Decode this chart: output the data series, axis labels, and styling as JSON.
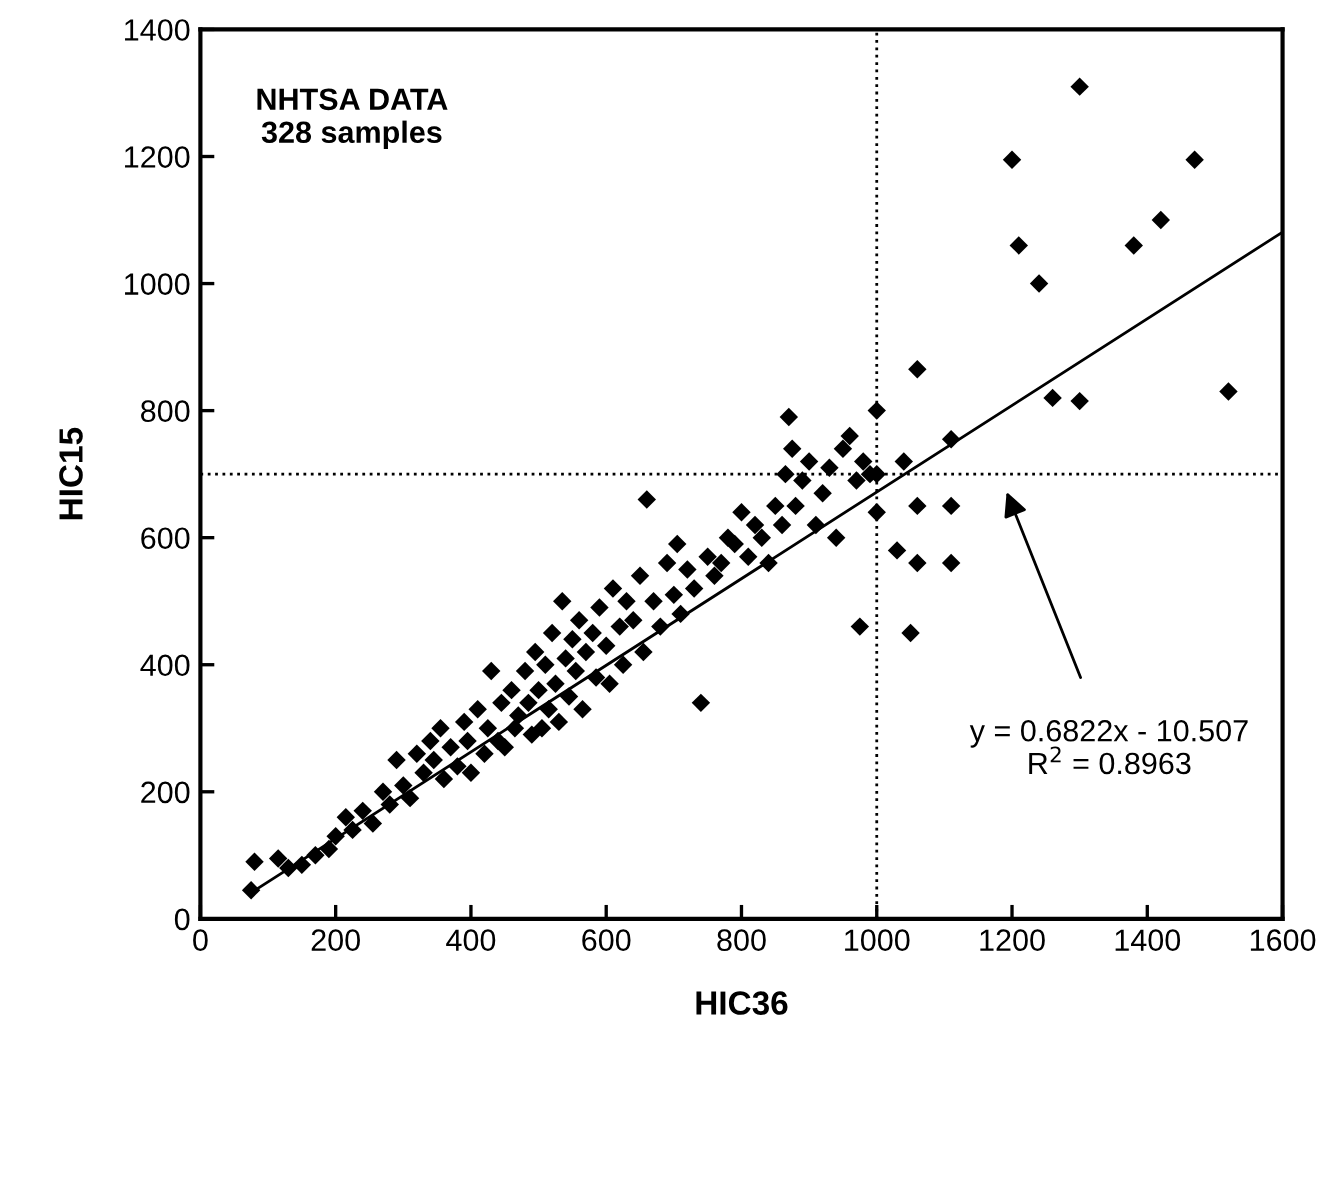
{
  "chart_data": {
    "type": "scatter",
    "xlabel": "HIC36",
    "ylabel": "HIC15",
    "xlim": [
      0,
      1600
    ],
    "ylim": [
      0,
      1400
    ],
    "xticks": [
      0,
      200,
      400,
      600,
      800,
      1000,
      1200,
      1400,
      1600
    ],
    "yticks": [
      0,
      200,
      400,
      600,
      800,
      1000,
      1200,
      1400
    ],
    "grid": false,
    "legend": false,
    "series": [
      {
        "color": "#000000",
        "marker": "diamond",
        "x": [
          75,
          80,
          115,
          130,
          150,
          170,
          190,
          200,
          215,
          225,
          240,
          255,
          270,
          280,
          290,
          300,
          310,
          320,
          330,
          340,
          345,
          355,
          360,
          370,
          380,
          390,
          395,
          400,
          410,
          420,
          425,
          430,
          440,
          445,
          450,
          460,
          465,
          470,
          480,
          485,
          490,
          495,
          500,
          505,
          510,
          515,
          520,
          525,
          530,
          535,
          540,
          545,
          550,
          555,
          560,
          565,
          570,
          580,
          585,
          590,
          600,
          605,
          610,
          620,
          625,
          630,
          640,
          650,
          655,
          660,
          670,
          680,
          690,
          700,
          705,
          710,
          720,
          730,
          740,
          750,
          760,
          770,
          780,
          790,
          800,
          810,
          820,
          830,
          840,
          850,
          860,
          865,
          870,
          875,
          880,
          890,
          900,
          910,
          920,
          930,
          940,
          950,
          960,
          970,
          975,
          980,
          990,
          1000,
          1000,
          1000,
          1030,
          1040,
          1050,
          1060,
          1060,
          1060,
          1110,
          1110,
          1110,
          1200,
          1210,
          1240,
          1260,
          1300,
          1300,
          1380,
          1420,
          1470,
          1520
        ],
        "values": [
          45,
          90,
          95,
          80,
          85,
          100,
          110,
          130,
          160,
          140,
          170,
          150,
          200,
          180,
          250,
          210,
          190,
          260,
          230,
          280,
          250,
          300,
          220,
          270,
          240,
          310,
          280,
          230,
          330,
          260,
          300,
          390,
          280,
          340,
          270,
          360,
          300,
          320,
          390,
          340,
          290,
          420,
          360,
          300,
          400,
          330,
          450,
          370,
          310,
          500,
          410,
          350,
          440,
          390,
          470,
          330,
          420,
          450,
          380,
          490,
          430,
          370,
          520,
          460,
          400,
          500,
          470,
          540,
          420,
          660,
          500,
          460,
          560,
          510,
          590,
          480,
          550,
          520,
          340,
          570,
          540,
          560,
          600,
          590,
          640,
          570,
          620,
          600,
          560,
          650,
          620,
          700,
          790,
          740,
          650,
          690,
          720,
          620,
          670,
          710,
          600,
          740,
          760,
          690,
          460,
          720,
          700,
          800,
          640,
          700,
          580,
          720,
          450,
          865,
          650,
          560,
          755,
          650,
          560,
          1195,
          1060,
          1000,
          820,
          1310,
          815,
          1060,
          1100,
          1195,
          830
        ]
      },
      {
        "type": "line",
        "color": "#000000",
        "x": [
          75,
          1600
        ],
        "values": [
          41,
          1081
        ]
      }
    ],
    "ref_lines": [
      {
        "axis": "x",
        "value": 1000,
        "line_style": "dotted",
        "color": "#000000"
      },
      {
        "axis": "y",
        "value": 700,
        "line_style": "dotted",
        "color": "#000000"
      }
    ],
    "annotations": [
      "NHTSA DATA\n328 samples",
      "y = 0.6822x - 10.507\nR$^{2}$ = 0.8963"
    ]
  }
}
